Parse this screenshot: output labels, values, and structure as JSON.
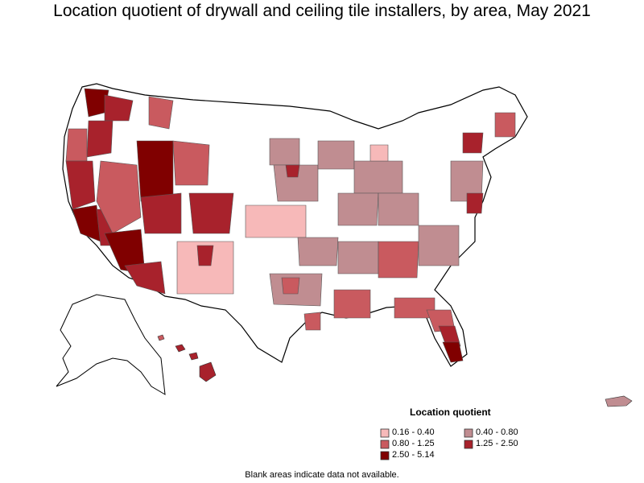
{
  "title": "Location quotient of drywall and ceiling tile installers, by area, May 2021",
  "legend": {
    "title": "Location quotient",
    "items": [
      {
        "label": "0.16 - 0.40",
        "color": "#f7b9b9"
      },
      {
        "label": "0.40 - 0.80",
        "color": "#c08d91"
      },
      {
        "label": "0.80 - 1.25",
        "color": "#c95a5f"
      },
      {
        "label": "1.25 - 2.50",
        "color": "#a8222c"
      },
      {
        "label": "2.50 - 5.14",
        "color": "#800000"
      }
    ]
  },
  "footnote": "Blank areas indicate data not available."
}
